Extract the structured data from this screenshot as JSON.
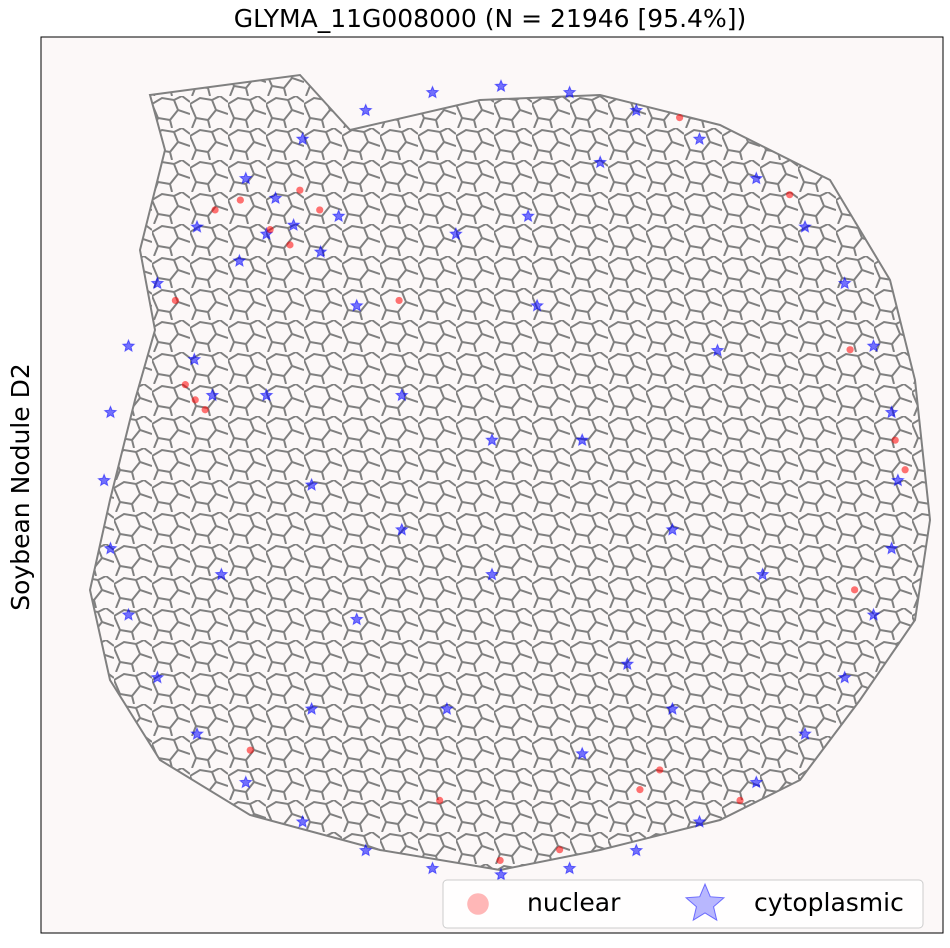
{
  "chart_data": {
    "type": "scatter",
    "title": "GLYMA_11G008000 (N = 21946 [95.4%])",
    "ylabel": "Soybean Nodule D2",
    "xlim": [
      0,
      1000
    ],
    "ylim": [
      0,
      1000
    ],
    "legend": "lower right",
    "series": [
      {
        "name": "nuclear",
        "color": "#ff0000",
        "marker": "circle",
        "x": [
          193,
          221,
          254,
          276,
          287,
          309,
          171,
          182,
          160,
          958,
          947,
          897,
          830,
          708,
          442,
          509,
          575,
          664,
          775,
          232,
          397,
          149,
          686,
          902
        ],
        "y": [
          807,
          818,
          785,
          768,
          829,
          807,
          595,
          584,
          612,
          517,
          550,
          651,
          824,
          910,
          148,
          81,
          93,
          160,
          148,
          204,
          706,
          706,
          182,
          383
        ]
      },
      {
        "name": "cytoplasmic",
        "color": "#0000ff",
        "marker": "star",
        "x": [
          950,
          943,
          923,
          891,
          847,
          793,
          730,
          660,
          586,
          510,
          434,
          360,
          290,
          227,
          173,
          129,
          97,
          77,
          70,
          77,
          97,
          129,
          173,
          227,
          290,
          360,
          434,
          510,
          586,
          660,
          730,
          793,
          847,
          891,
          923,
          943,
          300,
          400,
          500,
          600,
          700,
          350,
          450,
          650,
          550,
          250,
          750,
          400,
          600,
          800,
          200,
          300,
          700,
          500,
          350,
          250,
          280,
          310,
          220,
          260,
          330,
          190,
          170,
          460,
          540,
          620
        ],
        "y": [
          505,
          581,
          655,
          725,
          788,
          842,
          886,
          918,
          938,
          945,
          938,
          918,
          886,
          842,
          788,
          725,
          655,
          581,
          505,
          429,
          355,
          285,
          222,
          168,
          124,
          92,
          72,
          65,
          72,
          92,
          124,
          168,
          222,
          285,
          355,
          429,
          500,
          600,
          400,
          550,
          450,
          350,
          250,
          300,
          700,
          600,
          650,
          450,
          200,
          400,
          400,
          250,
          250,
          550,
          700,
          780,
          790,
          760,
          750,
          820,
          800,
          600,
          640,
          780,
          800,
          860
        ]
      }
    ]
  }
}
